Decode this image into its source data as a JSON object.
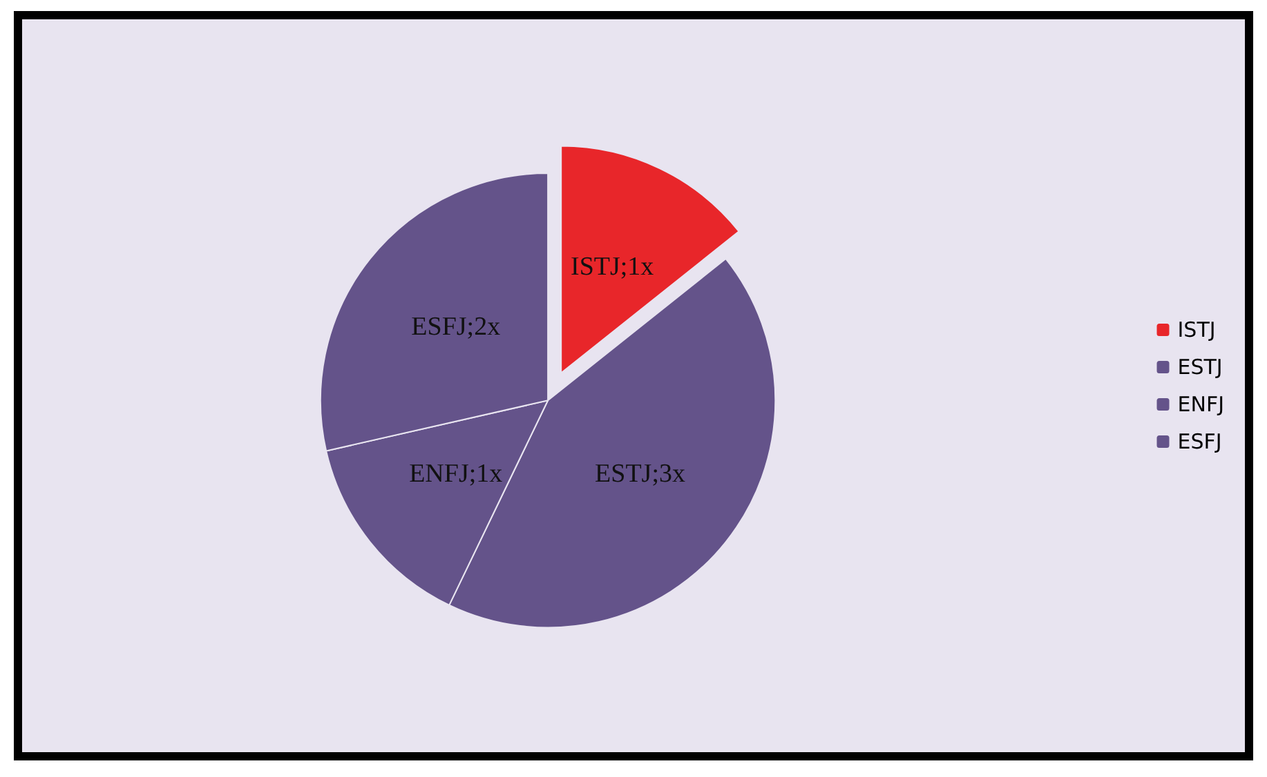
{
  "chart_data": {
    "type": "pie",
    "categories": [
      "ISTJ",
      "ESTJ",
      "ENFJ",
      "ESFJ"
    ],
    "values": [
      1,
      3,
      1,
      2
    ],
    "colors": [
      "#e8262a",
      "#64538a",
      "#64538a",
      "#64538a"
    ],
    "value_labels": [
      "ISTJ;1x",
      "ESTJ;3x",
      "ENFJ;1x",
      "ESFJ;2x"
    ],
    "legend": "right"
  }
}
